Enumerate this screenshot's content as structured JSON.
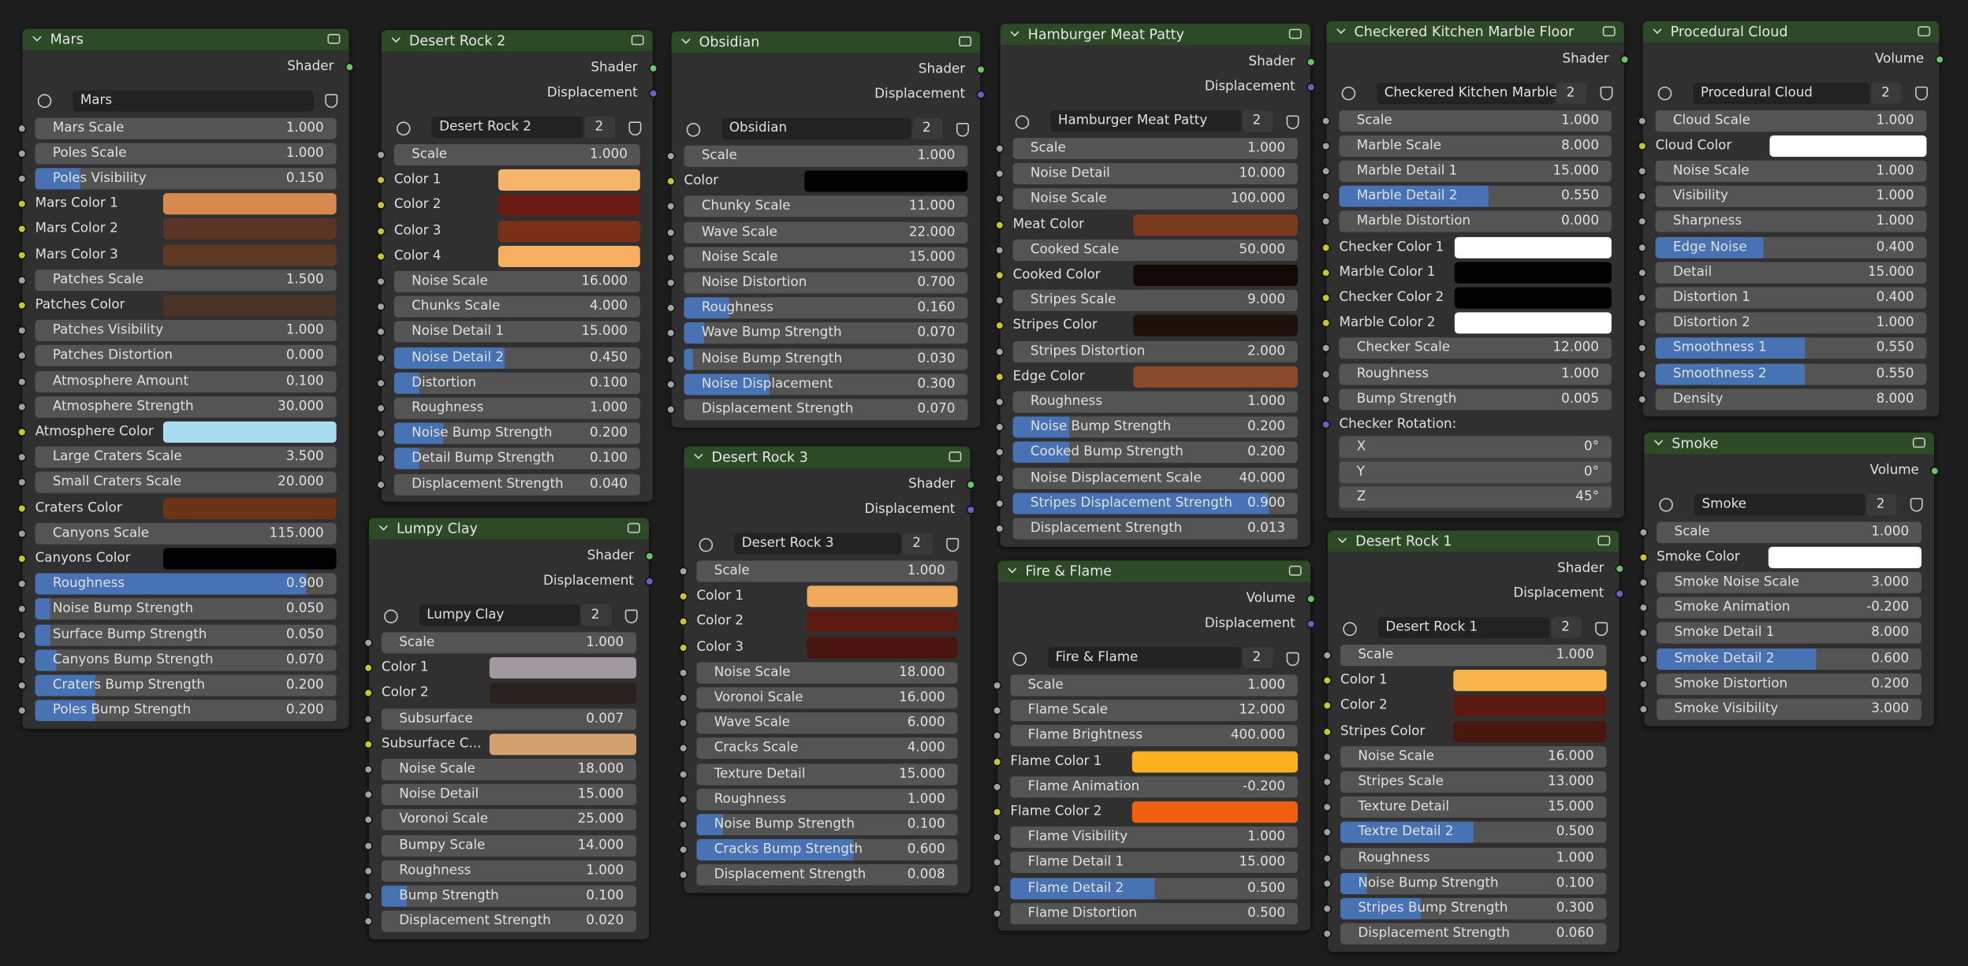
{
  "nodes": [
    {
      "title": "Mars",
      "outputs": [
        "Shader"
      ],
      "datablock": "Mars",
      "inputs": [
        {
          "label": "Mars Scale",
          "value": "1.000"
        },
        {
          "label": "Poles Scale",
          "value": "1.000"
        },
        {
          "label": "Poles Visibility",
          "value": "0.150",
          "factor": true
        },
        {
          "label": "Mars Color 1",
          "color": "#d68a4e"
        },
        {
          "label": "Mars Color 2",
          "color": "#5a3424"
        },
        {
          "label": "Mars Color 3",
          "color": "#5e3a24"
        },
        {
          "label": "Patches Scale",
          "value": "1.500"
        },
        {
          "label": "Patches Color",
          "color": "#4a3428"
        },
        {
          "label": "Patches Visibility",
          "value": "1.000"
        },
        {
          "label": "Patches Distortion",
          "value": "0.000"
        },
        {
          "label": "Atmosphere Amount",
          "value": "0.100"
        },
        {
          "label": "Atmosphere Strength",
          "value": "30.000"
        },
        {
          "label": "Atmosphere Color",
          "color": "#a8dcef"
        },
        {
          "label": "Large Craters Scale",
          "value": "3.500"
        },
        {
          "label": "Small Craters Scale",
          "value": "20.000"
        },
        {
          "label": "Craters Color",
          "color": "#6b3418"
        },
        {
          "label": "Canyons Scale",
          "value": "115.000"
        },
        {
          "label": "Canyons Color",
          "color": "#000000"
        },
        {
          "label": "Roughness",
          "value": "0.900",
          "factor": true
        },
        {
          "label": "Noise Bump Strength",
          "value": "0.050",
          "factor": true
        },
        {
          "label": "Surface Bump Strength",
          "value": "0.050",
          "factor": true
        },
        {
          "label": "Canyons Bump Strength",
          "value": "0.070",
          "factor": true
        },
        {
          "label": "Craters Bump Strength",
          "value": "0.200",
          "factor": true
        },
        {
          "label": "Poles Bump Strength",
          "value": "0.200",
          "factor": true
        }
      ]
    },
    {
      "title": "Desert Rock 2",
      "outputs": [
        "Shader",
        "Displacement"
      ],
      "datablock": "Desert Rock 2",
      "users": "2",
      "inputs": [
        {
          "label": "Scale",
          "value": "1.000"
        },
        {
          "label": "Color 1",
          "color": "#f5b66a"
        },
        {
          "label": "Color 2",
          "color": "#6a1c14"
        },
        {
          "label": "Color 3",
          "color": "#7a3018"
        },
        {
          "label": "Color 4",
          "color": "#f8b060"
        },
        {
          "label": "Noise Scale",
          "value": "16.000"
        },
        {
          "label": "Chunks Scale",
          "value": "4.000"
        },
        {
          "label": "Noise Detail 1",
          "value": "15.000"
        },
        {
          "label": "Noise Detail 2",
          "value": "0.450",
          "factor": true
        },
        {
          "label": "Distortion",
          "value": "0.100",
          "factor": true
        },
        {
          "label": "Roughness",
          "value": "1.000"
        },
        {
          "label": "Noise Bump Strength",
          "value": "0.200",
          "factor": true
        },
        {
          "label": "Detail Bump Strength",
          "value": "0.100",
          "factor": true
        },
        {
          "label": "Displacement Strength",
          "value": "0.040"
        }
      ]
    },
    {
      "title": "Obsidian",
      "outputs": [
        "Shader",
        "Displacement"
      ],
      "datablock": "Obsidian",
      "users": "2",
      "inputs": [
        {
          "label": "Scale",
          "value": "1.000"
        },
        {
          "label": "Color",
          "color": "#000000"
        },
        {
          "label": "Chunky Scale",
          "value": "11.000"
        },
        {
          "label": "Wave Scale",
          "value": "22.000"
        },
        {
          "label": "Noise Scale",
          "value": "15.000"
        },
        {
          "label": "Noise Distortion",
          "value": "0.700"
        },
        {
          "label": "Roughness",
          "value": "0.160",
          "factor": true
        },
        {
          "label": "Wave Bump Strength",
          "value": "0.070",
          "factor": true
        },
        {
          "label": "Noise Bump Strength",
          "value": "0.030",
          "factor": true
        },
        {
          "label": "Noise Displacement",
          "value": "0.300",
          "factor": true
        },
        {
          "label": "Displacement Strength",
          "value": "0.070"
        }
      ]
    },
    {
      "title": "Hamburger Meat Patty",
      "outputs": [
        "Shader",
        "Displacement"
      ],
      "datablock": "Hamburger Meat Patty",
      "users": "2",
      "inputs": [
        {
          "label": "Scale",
          "value": "1.000"
        },
        {
          "label": "Noise Detail",
          "value": "10.000"
        },
        {
          "label": "Noise Scale",
          "value": "100.000"
        },
        {
          "label": "Meat Color",
          "color": "#7a3a20"
        },
        {
          "label": "Cooked Scale",
          "value": "50.000"
        },
        {
          "label": "Cooked Color",
          "color": "#140806"
        },
        {
          "label": "Stripes Scale",
          "value": "9.000"
        },
        {
          "label": "Stripes Color",
          "color": "#1e100a"
        },
        {
          "label": "Stripes Distortion",
          "value": "2.000"
        },
        {
          "label": "Edge Color",
          "color": "#8a4a2a"
        },
        {
          "label": "Roughness",
          "value": "1.000"
        },
        {
          "label": "Noise Bump Strength",
          "value": "0.200",
          "factor": true
        },
        {
          "label": "Cooked Bump Strength",
          "value": "0.200",
          "factor": true
        },
        {
          "label": "Noise Displacement Scale",
          "value": "40.000"
        },
        {
          "label": "Stripes Displacement Strength",
          "value": "0.900",
          "factor": true
        },
        {
          "label": "Displacement Strength",
          "value": "0.013"
        }
      ]
    },
    {
      "title": "Checkered Kitchen Marble Floor",
      "outputs": [
        "Shader"
      ],
      "datablock": "Checkered Kitchen Marble...",
      "users": "2",
      "inputs": [
        {
          "label": "Scale",
          "value": "1.000"
        },
        {
          "label": "Marble Scale",
          "value": "8.000"
        },
        {
          "label": "Marble Detail 1",
          "value": "15.000"
        },
        {
          "label": "Marble Detail 2",
          "value": "0.550",
          "factor": true
        },
        {
          "label": "Marble Distortion",
          "value": "0.000"
        },
        {
          "label": "Checker Color 1",
          "color": "#ffffff"
        },
        {
          "label": "Marble Color 1",
          "color": "#000000"
        },
        {
          "label": "Checker Color 2",
          "color": "#000000"
        },
        {
          "label": "Marble Color 2",
          "color": "#ffffff"
        },
        {
          "label": "Checker Scale",
          "value": "12.000"
        },
        {
          "label": "Roughness",
          "value": "1.000"
        },
        {
          "label": "Bump Strength",
          "value": "0.005"
        },
        {
          "label": "Checker Rotation:",
          "vector": [
            {
              "label": "X",
              "value": "0°"
            },
            {
              "label": "Y",
              "value": "0°"
            },
            {
              "label": "Z",
              "value": "45°"
            }
          ]
        }
      ]
    },
    {
      "title": "Procedural Cloud",
      "outputs": [
        "Volume"
      ],
      "datablock": "Procedural Cloud",
      "users": "2",
      "inputs": [
        {
          "label": "Cloud Scale",
          "value": "1.000"
        },
        {
          "label": "Cloud Color",
          "color": "#ffffff"
        },
        {
          "label": "Noise Scale",
          "value": "1.000"
        },
        {
          "label": "Visibility",
          "value": "1.000"
        },
        {
          "label": "Sharpness",
          "value": "1.000"
        },
        {
          "label": "Edge Noise",
          "value": "0.400",
          "factor": true
        },
        {
          "label": "Detail",
          "value": "15.000"
        },
        {
          "label": "Distortion 1",
          "value": "0.400"
        },
        {
          "label": "Distortion 2",
          "value": "1.000"
        },
        {
          "label": "Smoothness 1",
          "value": "0.550",
          "factor": true
        },
        {
          "label": "Smoothness 2",
          "value": "0.550",
          "factor": true
        },
        {
          "label": "Density",
          "value": "8.000"
        }
      ]
    },
    {
      "title": "Lumpy Clay",
      "outputs": [
        "Shader",
        "Displacement"
      ],
      "datablock": "Lumpy Clay",
      "users": "2",
      "inputs": [
        {
          "label": "Scale",
          "value": "1.000"
        },
        {
          "label": "Color 1",
          "color": "#a09aa0"
        },
        {
          "label": "Color 2",
          "color": "#2a221e"
        },
        {
          "label": "Subsurface",
          "value": "0.007"
        },
        {
          "label": "Subsurface C...",
          "color": "#d4a070"
        },
        {
          "label": "Noise Scale",
          "value": "18.000"
        },
        {
          "label": "Noise Detail",
          "value": "15.000"
        },
        {
          "label": "Voronoi Scale",
          "value": "25.000"
        },
        {
          "label": "Bumpy Scale",
          "value": "14.000"
        },
        {
          "label": "Roughness",
          "value": "1.000"
        },
        {
          "label": "Bump Strength",
          "value": "0.100",
          "factor": true
        },
        {
          "label": "Displacement Strength",
          "value": "0.020"
        }
      ]
    },
    {
      "title": "Desert Rock 3",
      "outputs": [
        "Shader",
        "Displacement"
      ],
      "datablock": "Desert Rock 3",
      "users": "2",
      "inputs": [
        {
          "label": "Scale",
          "value": "1.000"
        },
        {
          "label": "Color 1",
          "color": "#f0aa5a"
        },
        {
          "label": "Color 2",
          "color": "#5c1a12"
        },
        {
          "label": "Color 3",
          "color": "#4a1410"
        },
        {
          "label": "Noise Scale",
          "value": "18.000"
        },
        {
          "label": "Voronoi Scale",
          "value": "16.000"
        },
        {
          "label": "Wave Scale",
          "value": "6.000"
        },
        {
          "label": "Cracks Scale",
          "value": "4.000"
        },
        {
          "label": "Texture Detail",
          "value": "15.000"
        },
        {
          "label": "Roughness",
          "value": "1.000"
        },
        {
          "label": "Noise Bump Strength",
          "value": "0.100",
          "factor": true
        },
        {
          "label": "Cracks Bump Strength",
          "value": "0.600",
          "factor": true
        },
        {
          "label": "Displacement Strength",
          "value": "0.008"
        }
      ]
    },
    {
      "title": "Fire & Flame",
      "outputs": [
        "Volume",
        "Displacement"
      ],
      "datablock": "Fire & Flame",
      "users": "2",
      "inputs": [
        {
          "label": "Scale",
          "value": "1.000"
        },
        {
          "label": "Flame Scale",
          "value": "12.000"
        },
        {
          "label": "Flame Brightness",
          "value": "400.000"
        },
        {
          "label": "Flame Color 1",
          "color": "#ffb020"
        },
        {
          "label": "Flame Animation",
          "value": "-0.200"
        },
        {
          "label": "Flame Color 2",
          "color": "#f06010"
        },
        {
          "label": "Flame Visibility",
          "value": "1.000"
        },
        {
          "label": "Flame Detail 1",
          "value": "15.000"
        },
        {
          "label": "Flame Detail 2",
          "value": "0.500",
          "factor": true
        },
        {
          "label": "Flame Distortion",
          "value": "0.500"
        }
      ]
    },
    {
      "title": "Desert Rock 1",
      "outputs": [
        "Shader",
        "Displacement"
      ],
      "datablock": "Desert Rock 1",
      "users": "2",
      "inputs": [
        {
          "label": "Scale",
          "value": "1.000"
        },
        {
          "label": "Color 1",
          "color": "#f8b448"
        },
        {
          "label": "Color 2",
          "color": "#5a1a12"
        },
        {
          "label": "Stripes Color",
          "color": "#4a1610"
        },
        {
          "label": "Noise Scale",
          "value": "16.000"
        },
        {
          "label": "Stripes Scale",
          "value": "13.000"
        },
        {
          "label": "Texture Detail",
          "value": "15.000"
        },
        {
          "label": "Textre Detail 2",
          "value": "0.500",
          "factor": true
        },
        {
          "label": "Roughness",
          "value": "1.000"
        },
        {
          "label": "Noise Bump Strength",
          "value": "0.100",
          "factor": true
        },
        {
          "label": "Stripes Bump Strength",
          "value": "0.300",
          "factor": true
        },
        {
          "label": "Displacement Strength",
          "value": "0.060"
        }
      ]
    },
    {
      "title": "Smoke",
      "outputs": [
        "Volume"
      ],
      "datablock": "Smoke",
      "users": "2",
      "inputs": [
        {
          "label": "Scale",
          "value": "1.000"
        },
        {
          "label": "Smoke Color",
          "color": "#ffffff"
        },
        {
          "label": "Smoke Noise Scale",
          "value": "3.000"
        },
        {
          "label": "Smoke Animation",
          "value": "-0.200"
        },
        {
          "label": "Smoke Detail 1",
          "value": "8.000"
        },
        {
          "label": "Smoke Detail 2",
          "value": "0.600",
          "factor": true
        },
        {
          "label": "Smoke Distortion",
          "value": "0.200"
        },
        {
          "label": "Smoke Visibility",
          "value": "3.000"
        }
      ]
    }
  ]
}
